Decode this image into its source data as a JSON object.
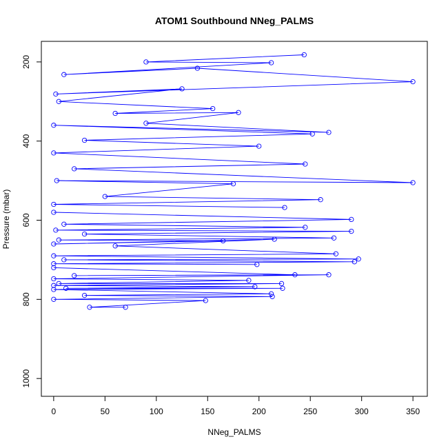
{
  "chart_data": {
    "type": "line",
    "title": "ATOM1 Southbound NNeg_PALMS",
    "xlabel": "NNeg_PALMS",
    "ylabel": "Pressure (mbar)",
    "xlim": [
      -12,
      364
    ],
    "ylim": [
      1045,
      148
    ],
    "y_reversed": true,
    "x_ticks": [
      0,
      50,
      100,
      150,
      200,
      250,
      300,
      350
    ],
    "y_ticks": [
      200,
      400,
      600,
      800,
      1000
    ],
    "marker": "open-circle",
    "series_color": "#0000ff",
    "series": [
      {
        "values": [
          {
            "x": 244,
            "y": 182
          },
          {
            "x": 90,
            "y": 200
          },
          {
            "x": 212,
            "y": 202
          },
          {
            "x": 10,
            "y": 232
          },
          {
            "x": 140,
            "y": 216
          },
          {
            "x": 350,
            "y": 250
          },
          {
            "x": 2,
            "y": 281
          },
          {
            "x": 125,
            "y": 268
          },
          {
            "x": 5,
            "y": 300
          },
          {
            "x": 155,
            "y": 318
          },
          {
            "x": 60,
            "y": 330
          },
          {
            "x": 180,
            "y": 328
          },
          {
            "x": 90,
            "y": 355
          },
          {
            "x": 268,
            "y": 378
          },
          {
            "x": 0,
            "y": 360
          },
          {
            "x": 252,
            "y": 382
          },
          {
            "x": 30,
            "y": 398
          },
          {
            "x": 200,
            "y": 413
          },
          {
            "x": 0,
            "y": 430
          },
          {
            "x": 245,
            "y": 458
          },
          {
            "x": 20,
            "y": 470
          },
          {
            "x": 350,
            "y": 505
          },
          {
            "x": 3,
            "y": 500
          },
          {
            "x": 175,
            "y": 508
          },
          {
            "x": 50,
            "y": 540
          },
          {
            "x": 260,
            "y": 548
          },
          {
            "x": 0,
            "y": 560
          },
          {
            "x": 225,
            "y": 568
          }
        ]
      },
      {
        "values": [
          {
            "x": 0,
            "y": 580
          },
          {
            "x": 290,
            "y": 598
          },
          {
            "x": 10,
            "y": 610
          },
          {
            "x": 245,
            "y": 618
          },
          {
            "x": 2,
            "y": 625
          },
          {
            "x": 290,
            "y": 628
          },
          {
            "x": 30,
            "y": 635
          },
          {
            "x": 273,
            "y": 645
          },
          {
            "x": 5,
            "y": 650
          },
          {
            "x": 165,
            "y": 652
          },
          {
            "x": 0,
            "y": 660
          },
          {
            "x": 215,
            "y": 648
          },
          {
            "x": 60,
            "y": 665
          },
          {
            "x": 275,
            "y": 685
          },
          {
            "x": 0,
            "y": 690
          },
          {
            "x": 297,
            "y": 698
          },
          {
            "x": 10,
            "y": 700
          },
          {
            "x": 293,
            "y": 705
          },
          {
            "x": 0,
            "y": 710
          },
          {
            "x": 198,
            "y": 712
          }
        ]
      },
      {
        "values": [
          {
            "x": 0,
            "y": 720
          },
          {
            "x": 235,
            "y": 738
          },
          {
            "x": 20,
            "y": 740
          },
          {
            "x": 268,
            "y": 738
          },
          {
            "x": 0,
            "y": 748
          },
          {
            "x": 190,
            "y": 752
          },
          {
            "x": 5,
            "y": 760
          },
          {
            "x": 222,
            "y": 760
          },
          {
            "x": 0,
            "y": 765
          },
          {
            "x": 196,
            "y": 768
          },
          {
            "x": 12,
            "y": 772
          },
          {
            "x": 223,
            "y": 772
          },
          {
            "x": 0,
            "y": 775
          },
          {
            "x": 212,
            "y": 786
          },
          {
            "x": 30,
            "y": 790
          },
          {
            "x": 213,
            "y": 793
          },
          {
            "x": 0,
            "y": 800
          },
          {
            "x": 148,
            "y": 803
          },
          {
            "x": 35,
            "y": 820
          },
          {
            "x": 70,
            "y": 820
          }
        ]
      }
    ]
  }
}
